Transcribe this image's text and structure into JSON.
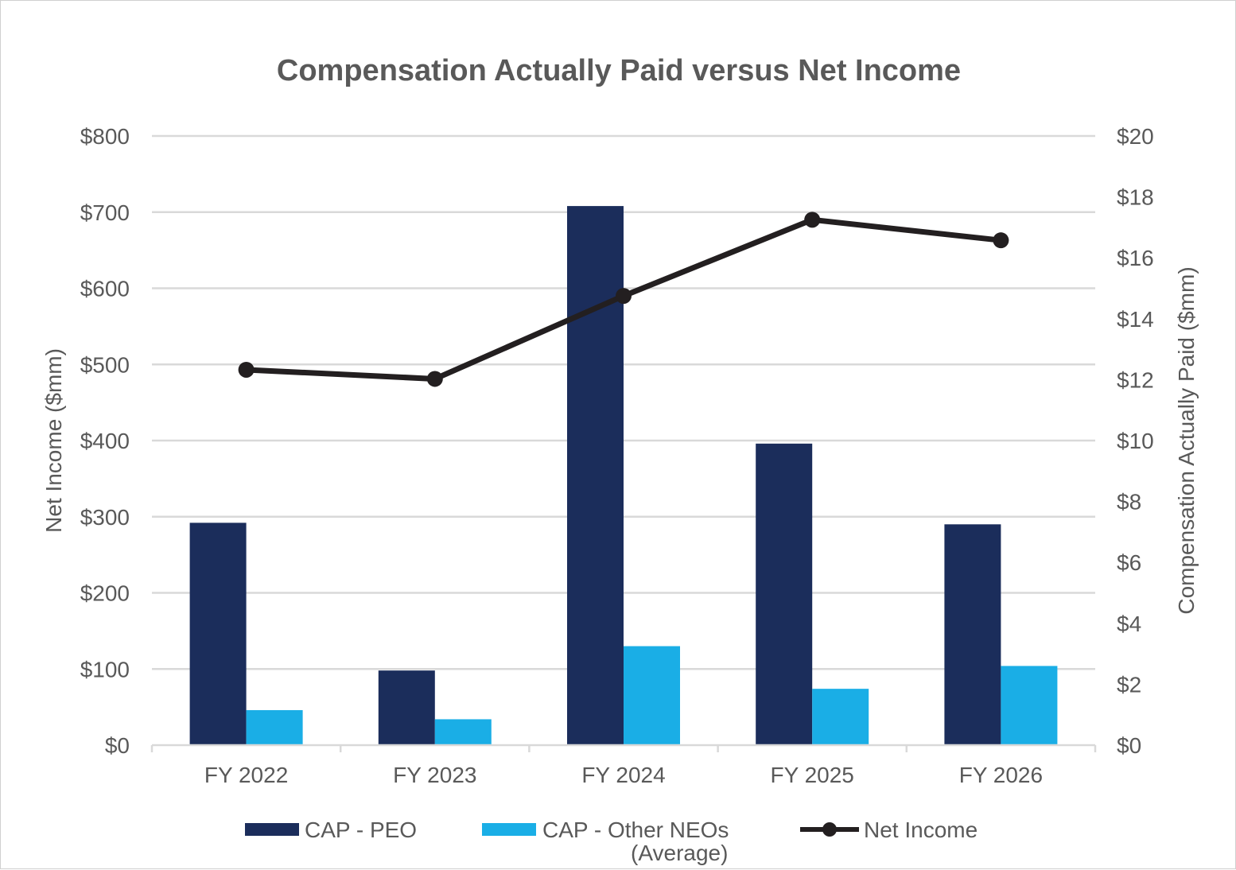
{
  "chart_data": {
    "type": "bar",
    "title": "Compensation Actually Paid versus Net Income",
    "categories": [
      "FY 2022",
      "FY 2023",
      "FY 2024",
      "FY 2025",
      "FY 2026"
    ],
    "y_left": {
      "label": "Net Income ($mm)",
      "range": [
        0,
        800
      ],
      "ticks": [
        "$0",
        "$100",
        "$200",
        "$300",
        "$400",
        "$500",
        "$600",
        "$700",
        "$800"
      ]
    },
    "y_right": {
      "label": "Compensation Actually Paid ($mm)",
      "range": [
        0,
        20
      ],
      "ticks": [
        "$0",
        "$2",
        "$4",
        "$6",
        "$8",
        "$10",
        "$12",
        "$14",
        "$16",
        "$18",
        "$20"
      ]
    },
    "series": [
      {
        "name": "CAP - PEO",
        "type": "bar",
        "axis": "right",
        "color": "#1b2d5b",
        "values": [
          7.3,
          2.45,
          17.7,
          9.9,
          7.25
        ]
      },
      {
        "name": "CAP - Other NEOs (Average)",
        "type": "bar",
        "axis": "right",
        "color": "#1aaee6",
        "values": [
          1.15,
          0.85,
          3.25,
          1.85,
          2.6
        ]
      },
      {
        "name": "Net Income",
        "type": "line",
        "axis": "left",
        "color": "#231f20",
        "values": [
          493,
          481,
          590,
          690,
          663
        ]
      }
    ],
    "grid": true,
    "legend_position": "bottom"
  },
  "legend": {
    "peo": "CAP - PEO",
    "neo_line1": "CAP - Other NEOs",
    "neo_line2": "(Average)",
    "net_income": "Net Income"
  }
}
